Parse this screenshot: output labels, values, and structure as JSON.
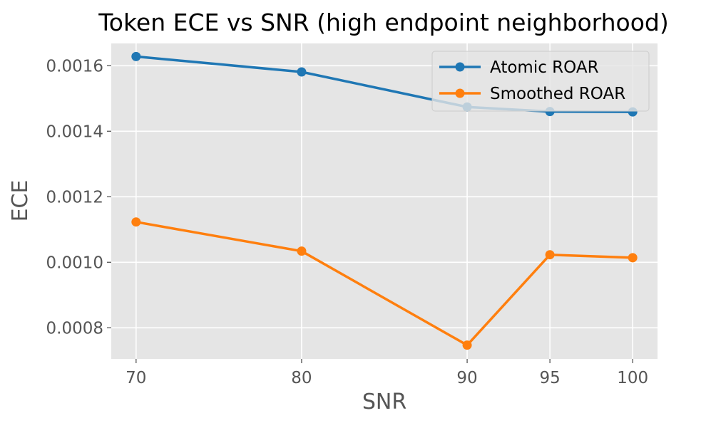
{
  "chart_data": {
    "type": "line",
    "title": "Token ECE vs SNR (high endpoint neighborhood)",
    "xlabel": "SNR",
    "ylabel": "ECE",
    "x": [
      70,
      80,
      90,
      95,
      100
    ],
    "x_tick_labels": [
      "70",
      "80",
      "90",
      "95",
      "100"
    ],
    "xlim": [
      68.5,
      101.5
    ],
    "ylim": [
      0.000705,
      0.001668
    ],
    "y_ticks": [
      0.0008,
      0.001,
      0.0012,
      0.0014,
      0.0016
    ],
    "y_tick_labels": [
      "0.0008",
      "0.0010",
      "0.0012",
      "0.0014",
      "0.0016"
    ],
    "grid": true,
    "legend_position": "top-right",
    "series": [
      {
        "name": "Atomic ROAR",
        "color": "#1f77b4",
        "values": [
          0.001628,
          0.001581,
          0.001474,
          0.00146,
          0.001459
        ]
      },
      {
        "name": "Smoothed ROAR",
        "color": "#ff7f0e",
        "values": [
          0.001123,
          0.001034,
          0.000747,
          0.001023,
          0.001014
        ]
      }
    ]
  }
}
